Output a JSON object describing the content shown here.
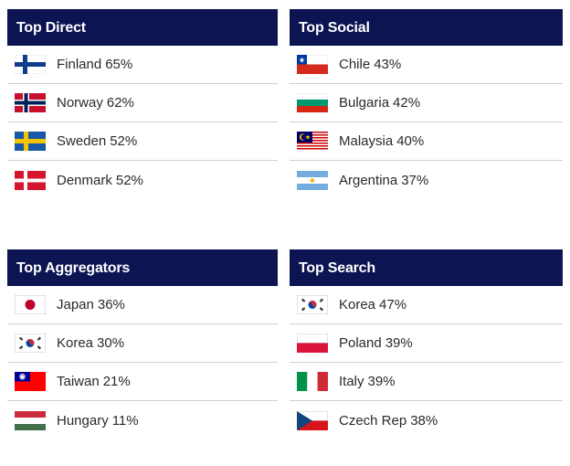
{
  "panels": [
    {
      "title": "Top Direct",
      "rows": [
        {
          "country": "Finland",
          "percent": "65%",
          "flag": "finland-flag-icon"
        },
        {
          "country": "Norway",
          "percent": "62%",
          "flag": "norway-flag-icon"
        },
        {
          "country": "Sweden",
          "percent": "52%",
          "flag": "sweden-flag-icon"
        },
        {
          "country": "Denmark",
          "percent": "52%",
          "flag": "denmark-flag-icon"
        }
      ]
    },
    {
      "title": "Top Social",
      "rows": [
        {
          "country": "Chile",
          "percent": "43%",
          "flag": "chile-flag-icon"
        },
        {
          "country": "Bulgaria",
          "percent": "42%",
          "flag": "bulgaria-flag-icon"
        },
        {
          "country": "Malaysia",
          "percent": "40%",
          "flag": "malaysia-flag-icon"
        },
        {
          "country": "Argentina",
          "percent": "37%",
          "flag": "argentina-flag-icon"
        }
      ]
    },
    {
      "title": "Top Aggregators",
      "rows": [
        {
          "country": "Japan",
          "percent": "36%",
          "flag": "japan-flag-icon"
        },
        {
          "country": "Korea",
          "percent": "30%",
          "flag": "korea-flag-icon"
        },
        {
          "country": "Taiwan",
          "percent": "21%",
          "flag": "taiwan-flag-icon"
        },
        {
          "country": "Hungary",
          "percent": "11%",
          "flag": "hungary-flag-icon"
        }
      ]
    },
    {
      "title": "Top Search",
      "rows": [
        {
          "country": "Korea",
          "percent": "47%",
          "flag": "korea-flag-icon"
        },
        {
          "country": "Poland",
          "percent": "39%",
          "flag": "poland-flag-icon"
        },
        {
          "country": "Italy",
          "percent": "39%",
          "flag": "italy-flag-icon"
        },
        {
          "country": "Czech Rep",
          "percent": "38%",
          "flag": "czech-flag-icon"
        }
      ]
    }
  ],
  "colors": {
    "header_background": "#0c1452",
    "header_text": "#ffffff",
    "row_text": "#2a2a2a",
    "divider": "#cfcfcf"
  }
}
